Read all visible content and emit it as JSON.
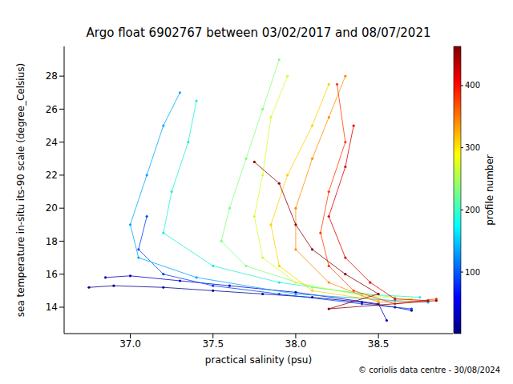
{
  "chart_data": {
    "type": "scatter",
    "title": "Argo float 6902767 between 03/02/2017 and 08/07/2021",
    "x_label": "practical salinity (psu)",
    "y_label": "sea temperature in-situ its-90 scale (degree_Celsius)",
    "footer": "© coriolis data centre - 30/08/2024",
    "marker": "circle",
    "line_style": "solid",
    "grid": false,
    "xlim": [
      36.6,
      38.95
    ],
    "xticks": [
      {
        "value": 37,
        "label": "37.0"
      },
      {
        "value": 37.5,
        "label": "37.5"
      },
      {
        "value": 38,
        "label": "38.0"
      },
      {
        "value": 38.5,
        "label": "38.5"
      }
    ],
    "ylim": [
      12.4,
      29.8
    ],
    "yticks": [
      14,
      16,
      18,
      20,
      22,
      24,
      26,
      28
    ],
    "colorbar": {
      "label": "profile number",
      "range": [
        1,
        463
      ],
      "ticks": [
        100,
        200,
        300,
        400
      ],
      "colors": [
        "#00007f",
        "#0000ff",
        "#007fff",
        "#00ffff",
        "#7fff7f",
        "#ffff00",
        "#ff7f00",
        "#ff0000",
        "#7f0000"
      ]
    },
    "series": [
      {
        "color": "#00008f",
        "values": [
          [
            36.75,
            15.2
          ],
          [
            36.9,
            15.3
          ],
          [
            37.2,
            15.2
          ],
          [
            37.5,
            15.0
          ],
          [
            37.8,
            14.8
          ],
          [
            38.1,
            14.6
          ],
          [
            38.4,
            14.3
          ],
          [
            38.6,
            14.0
          ],
          [
            38.7,
            13.8
          ]
        ]
      },
      {
        "color": "#0000c8",
        "values": [
          [
            36.85,
            15.8
          ],
          [
            37.0,
            15.9
          ],
          [
            37.3,
            15.6
          ],
          [
            37.6,
            15.3
          ],
          [
            38.0,
            14.9
          ],
          [
            38.5,
            14.2
          ],
          [
            38.55,
            13.2
          ]
        ]
      },
      {
        "color": "#0040ff",
        "values": [
          [
            37.1,
            19.5
          ],
          [
            37.05,
            17.5
          ],
          [
            37.2,
            16.0
          ],
          [
            37.5,
            15.3
          ],
          [
            37.9,
            14.8
          ],
          [
            38.4,
            14.2
          ],
          [
            38.7,
            13.9
          ]
        ]
      },
      {
        "color": "#00a8ff",
        "values": [
          [
            37.3,
            27.0
          ],
          [
            37.2,
            25.0
          ],
          [
            37.1,
            22.0
          ],
          [
            37.0,
            19.0
          ],
          [
            37.05,
            17.0
          ],
          [
            37.4,
            15.8
          ],
          [
            38.0,
            14.8
          ],
          [
            38.6,
            14.4
          ],
          [
            38.8,
            14.3
          ]
        ]
      },
      {
        "color": "#20f0d8",
        "values": [
          [
            37.4,
            26.5
          ],
          [
            37.35,
            24.0
          ],
          [
            37.25,
            21.0
          ],
          [
            37.2,
            18.5
          ],
          [
            37.5,
            16.5
          ],
          [
            37.9,
            15.5
          ],
          [
            38.4,
            14.8
          ],
          [
            38.75,
            14.6
          ]
        ]
      },
      {
        "color": "#80ff7f",
        "values": [
          [
            37.9,
            29.0
          ],
          [
            37.8,
            26.0
          ],
          [
            37.7,
            23.0
          ],
          [
            37.6,
            20.0
          ],
          [
            37.55,
            18.0
          ],
          [
            37.7,
            16.5
          ],
          [
            38.1,
            15.2
          ],
          [
            38.6,
            14.6
          ]
        ]
      },
      {
        "color": "#d0ff30",
        "values": [
          [
            37.95,
            28.0
          ],
          [
            37.85,
            25.5
          ],
          [
            37.8,
            22.0
          ],
          [
            37.75,
            19.5
          ],
          [
            37.8,
            17.0
          ],
          [
            38.0,
            15.5
          ],
          [
            38.4,
            14.7
          ],
          [
            38.7,
            14.5
          ]
        ]
      },
      {
        "color": "#ffd000",
        "values": [
          [
            38.2,
            27.5
          ],
          [
            38.1,
            25.0
          ],
          [
            37.95,
            22.0
          ],
          [
            37.85,
            19.0
          ],
          [
            37.9,
            16.5
          ],
          [
            38.1,
            15.0
          ],
          [
            38.5,
            14.4
          ]
        ]
      },
      {
        "color": "#ff9000",
        "values": [
          [
            38.3,
            28.0
          ],
          [
            38.2,
            25.5
          ],
          [
            38.1,
            23.0
          ],
          [
            38.0,
            20.0
          ],
          [
            38.0,
            17.5
          ],
          [
            38.2,
            15.5
          ],
          [
            38.5,
            14.3
          ],
          [
            38.8,
            14.4
          ]
        ]
      },
      {
        "color": "#ff4000",
        "values": [
          [
            38.25,
            27.5
          ],
          [
            38.3,
            24.0
          ],
          [
            38.2,
            21.0
          ],
          [
            38.15,
            18.5
          ],
          [
            38.2,
            16.5
          ],
          [
            38.35,
            15.0
          ],
          [
            38.6,
            14.2
          ],
          [
            38.85,
            14.5
          ]
        ]
      },
      {
        "color": "#e00000",
        "values": [
          [
            38.35,
            25.0
          ],
          [
            38.3,
            22.5
          ],
          [
            38.2,
            19.5
          ],
          [
            38.3,
            17.0
          ],
          [
            38.45,
            15.5
          ],
          [
            38.6,
            14.5
          ],
          [
            38.8,
            14.4
          ]
        ]
      },
      {
        "color": "#900000",
        "values": [
          [
            37.75,
            22.8
          ],
          [
            37.9,
            21.5
          ],
          [
            38.0,
            19.0
          ],
          [
            38.1,
            17.5
          ],
          [
            38.3,
            16.0
          ],
          [
            38.5,
            14.8
          ],
          [
            38.2,
            13.9
          ],
          [
            38.85,
            14.4
          ]
        ]
      }
    ]
  }
}
